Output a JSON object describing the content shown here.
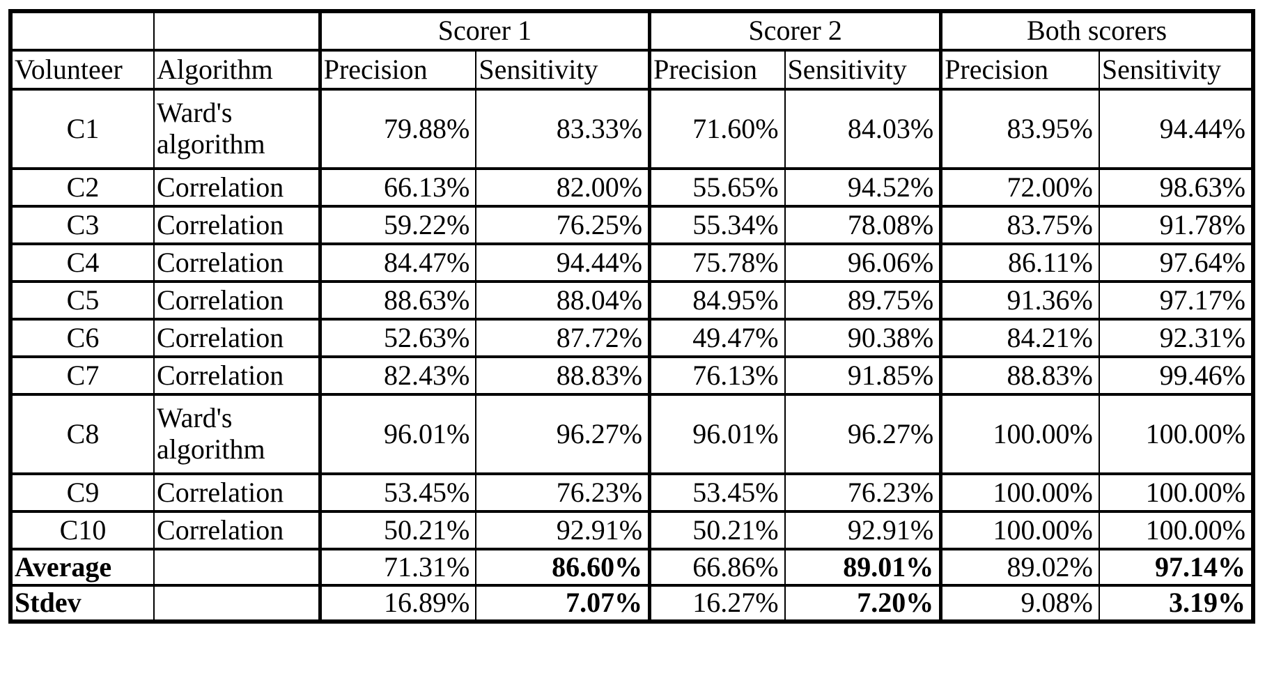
{
  "table": {
    "group_header": {
      "corner_blank_1": "",
      "corner_blank_2": "",
      "groups": [
        {
          "label": "Scorer 1"
        },
        {
          "label": "Scorer 2"
        },
        {
          "label": "Both scorers"
        }
      ]
    },
    "column_header": {
      "volunteer": "Volunteer",
      "algorithm": "Algorithm",
      "metrics": [
        "Precision",
        "Sensitivity",
        "Precision",
        "Sensitivity",
        "Precision",
        "Sensitivity"
      ]
    },
    "rows": [
      {
        "volunteer": "C1",
        "algorithm": "Ward's algorithm",
        "tall": true,
        "values": [
          "79.88%",
          "83.33%",
          "71.60%",
          "84.03%",
          "83.95%",
          "94.44%"
        ]
      },
      {
        "volunteer": "C2",
        "algorithm": "Correlation",
        "tall": false,
        "values": [
          "66.13%",
          "82.00%",
          "55.65%",
          "94.52%",
          "72.00%",
          "98.63%"
        ]
      },
      {
        "volunteer": "C3",
        "algorithm": "Correlation",
        "tall": false,
        "values": [
          "59.22%",
          "76.25%",
          "55.34%",
          "78.08%",
          "83.75%",
          "91.78%"
        ]
      },
      {
        "volunteer": "C4",
        "algorithm": "Correlation",
        "tall": false,
        "values": [
          "84.47%",
          "94.44%",
          "75.78%",
          "96.06%",
          "86.11%",
          "97.64%"
        ]
      },
      {
        "volunteer": "C5",
        "algorithm": "Correlation",
        "tall": false,
        "values": [
          "88.63%",
          "88.04%",
          "84.95%",
          "89.75%",
          "91.36%",
          "97.17%"
        ]
      },
      {
        "volunteer": "C6",
        "algorithm": "Correlation",
        "tall": false,
        "values": [
          "52.63%",
          "87.72%",
          "49.47%",
          "90.38%",
          "84.21%",
          "92.31%"
        ]
      },
      {
        "volunteer": "C7",
        "algorithm": "Correlation",
        "tall": false,
        "values": [
          "82.43%",
          "88.83%",
          "76.13%",
          "91.85%",
          "88.83%",
          "99.46%"
        ]
      },
      {
        "volunteer": "C8",
        "algorithm": "Ward's algorithm",
        "tall": true,
        "values": [
          "96.01%",
          "96.27%",
          "96.01%",
          "96.27%",
          "100.00%",
          "100.00%"
        ]
      },
      {
        "volunteer": "C9",
        "algorithm": "Correlation",
        "tall": false,
        "values": [
          "53.45%",
          "76.23%",
          "53.45%",
          "76.23%",
          "100.00%",
          "100.00%"
        ]
      },
      {
        "volunteer": "C10",
        "algorithm": "Correlation",
        "tall": false,
        "values": [
          "50.21%",
          "92.91%",
          "50.21%",
          "92.91%",
          "100.00%",
          "100.00%"
        ]
      }
    ],
    "summary_rows": [
      {
        "label": "Average",
        "blank": "",
        "values": [
          "71.31%",
          "86.60%",
          "66.86%",
          "89.01%",
          "89.02%",
          "97.14%"
        ],
        "bold_values": [
          false,
          true,
          false,
          true,
          false,
          true
        ]
      },
      {
        "label": "Stdev",
        "blank": "",
        "values": [
          "16.89%",
          "7.07%",
          "16.27%",
          "7.20%",
          "9.08%",
          "3.19%"
        ],
        "bold_values": [
          false,
          true,
          false,
          true,
          false,
          true
        ]
      }
    ]
  },
  "colors": {
    "border": "#000000",
    "background": "#ffffff",
    "text": "#000000"
  }
}
